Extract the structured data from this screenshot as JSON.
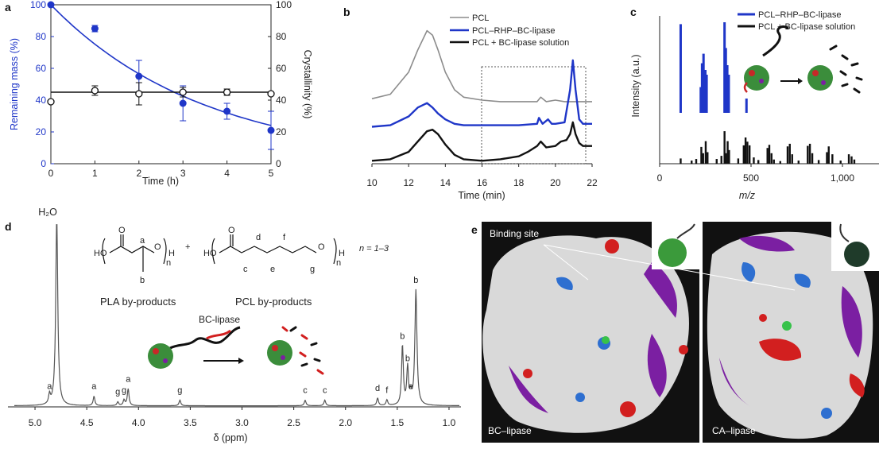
{
  "panel_labels": {
    "a": "a",
    "b": "b",
    "c": "c",
    "d": "d",
    "e": "e"
  },
  "colors": {
    "blue": "#1f36c8",
    "black": "#111111",
    "gray": "#8c8c8c",
    "red": "#d21f1f",
    "green": "#2f8f34",
    "purple": "#7b1fa2"
  },
  "chart_data": [
    {
      "panel": "a",
      "type": "scatter",
      "xlabel": "Time (h)",
      "ylabel": "Remaining mass (%)",
      "y2label": "Crystallinity (%)",
      "xlim": [
        0,
        5
      ],
      "ylim": [
        0,
        100
      ],
      "y2lim": [
        0,
        100
      ],
      "x_ticks": [
        "0",
        "1",
        "2",
        "3",
        "4",
        "5"
      ],
      "y_ticks": [
        "0",
        "20",
        "40",
        "60",
        "80",
        "100"
      ],
      "y2_ticks": [
        "0",
        "20",
        "40",
        "60",
        "80",
        "100"
      ],
      "series": [
        {
          "color": "#1f36c8",
          "x": [
            0,
            1,
            2,
            3,
            4,
            5
          ],
          "y": [
            100,
            85,
            55,
            38,
            33,
            21
          ],
          "err": [
            0,
            2,
            10,
            11,
            5,
            12
          ],
          "fit_y": [
            100,
            76,
            58,
            44,
            33,
            24
          ]
        },
        {
          "color": "#111111",
          "x": [
            0,
            1,
            2,
            3,
            4,
            5
          ],
          "y": [
            39,
            46,
            44,
            45,
            45,
            44
          ],
          "err": [
            0,
            3,
            7,
            3,
            2,
            0
          ],
          "fit_y": [
            45,
            45,
            45,
            45,
            45,
            45
          ]
        }
      ]
    },
    {
      "panel": "b",
      "type": "line",
      "xlabel": "Time (min)",
      "xlim": [
        10,
        22
      ],
      "x_ticks": [
        "10",
        "12",
        "14",
        "16",
        "18",
        "20",
        "22"
      ],
      "legend": [
        "PCL",
        "PCL–RHP–BC-lipase",
        "PCL + BC-lipase solution"
      ],
      "series": [
        {
          "name": "PCL",
          "color": "#8c8c8c",
          "x": [
            10,
            11,
            12,
            12.5,
            13,
            13.3,
            13.6,
            14,
            14.5,
            15,
            16,
            17,
            18,
            19,
            19.2,
            19.5,
            20,
            20.5,
            21,
            21.5,
            22
          ],
          "y": [
            0.44,
            0.47,
            0.62,
            0.77,
            0.9,
            0.87,
            0.77,
            0.62,
            0.5,
            0.45,
            0.43,
            0.42,
            0.42,
            0.42,
            0.45,
            0.42,
            0.43,
            0.42,
            0.42,
            0.42,
            0.42
          ]
        },
        {
          "name": "PCL–RHP–BC-lipase",
          "color": "#1f36c8",
          "x": [
            10,
            11,
            12,
            12.5,
            13,
            13.3,
            13.6,
            14,
            14.5,
            15,
            16,
            17,
            18,
            19,
            19.1,
            19.3,
            19.6,
            19.8,
            20,
            20.5,
            20.8,
            20.95,
            21.1,
            21.3,
            21.5,
            22
          ],
          "y": [
            0.25,
            0.26,
            0.32,
            0.38,
            0.41,
            0.38,
            0.34,
            0.3,
            0.27,
            0.26,
            0.26,
            0.26,
            0.26,
            0.27,
            0.31,
            0.27,
            0.3,
            0.27,
            0.27,
            0.28,
            0.5,
            0.7,
            0.5,
            0.3,
            0.27,
            0.27
          ]
        },
        {
          "name": "PCL + BC-lipase solution",
          "color": "#111111",
          "x": [
            10,
            11,
            12,
            12.5,
            13,
            13.3,
            13.6,
            14,
            14.5,
            15,
            16,
            17,
            18,
            18.5,
            19,
            19.2,
            19.5,
            20,
            20.3,
            20.6,
            20.8,
            20.95,
            21.1,
            21.3,
            21.5,
            22
          ],
          "y": [
            0.02,
            0.03,
            0.08,
            0.15,
            0.22,
            0.23,
            0.2,
            0.13,
            0.06,
            0.03,
            0.02,
            0.03,
            0.05,
            0.08,
            0.12,
            0.15,
            0.11,
            0.12,
            0.15,
            0.16,
            0.2,
            0.28,
            0.2,
            0.14,
            0.12,
            0.12
          ]
        }
      ]
    },
    {
      "panel": "c",
      "type": "bar",
      "xlabel": "m/z",
      "ylabel": "Intensity (a.u.)",
      "xlim": [
        0,
        1200
      ],
      "x_ticks": [
        "0",
        "500",
        "1,000"
      ],
      "legend": [
        "PCL–RHP–BC-lipase",
        "PCL + BC-lipase solution"
      ],
      "series": [
        {
          "name": "PCL–RHP–BC-lipase",
          "color": "#1f36c8",
          "x": [
            115,
            225,
            232,
            240,
            250,
            257,
            355,
            362,
            370,
            378,
            475
          ],
          "y": [
            0.93,
            0.27,
            0.52,
            0.62,
            0.45,
            0.4,
            0.95,
            0.68,
            0.5,
            0.4,
            0.15
          ]
        },
        {
          "name": "PCL + BC-lipase solution",
          "color": "#111111",
          "x": [
            115,
            175,
            200,
            228,
            238,
            252,
            262,
            312,
            338,
            355,
            362,
            372,
            380,
            430,
            460,
            470,
            480,
            492,
            515,
            540,
            590,
            600,
            612,
            625,
            660,
            700,
            712,
            725,
            760,
            810,
            822,
            835,
            870,
            915,
            925,
            945,
            990,
            1035,
            1050,
            1065
          ],
          "y": [
            0.1,
            0.06,
            0.09,
            0.32,
            0.2,
            0.43,
            0.22,
            0.09,
            0.15,
            0.62,
            0.2,
            0.43,
            0.26,
            0.1,
            0.35,
            0.5,
            0.42,
            0.35,
            0.12,
            0.07,
            0.3,
            0.36,
            0.2,
            0.08,
            0.05,
            0.33,
            0.38,
            0.18,
            0.06,
            0.34,
            0.38,
            0.2,
            0.07,
            0.22,
            0.33,
            0.18,
            0.06,
            0.18,
            0.14,
            0.08
          ]
        }
      ]
    },
    {
      "panel": "d",
      "type": "line",
      "xlabel": "δ (ppm)",
      "xlim": [
        5.2,
        0.9
      ],
      "x_ticks": [
        "5.0",
        "4.5",
        "4.0",
        "3.5",
        "3.0",
        "2.5",
        "2.0",
        "1.5",
        "1.0"
      ],
      "peaks": [
        {
          "label": "a",
          "ppm": 4.86,
          "h": 0.05
        },
        {
          "label": "H₂O",
          "ppm": 4.79,
          "h": 1.0
        },
        {
          "label": "a",
          "ppm": 4.43,
          "h": 0.05
        },
        {
          "label": "g",
          "ppm": 4.2,
          "h": 0.02
        },
        {
          "label": "g",
          "ppm": 4.14,
          "h": 0.03
        },
        {
          "label": "a",
          "ppm": 4.1,
          "h": 0.09
        },
        {
          "label": "g",
          "ppm": 3.6,
          "h": 0.03
        },
        {
          "label": "c",
          "ppm": 2.39,
          "h": 0.03
        },
        {
          "label": "c",
          "ppm": 2.2,
          "h": 0.03
        },
        {
          "label": "d",
          "ppm": 1.69,
          "h": 0.04
        },
        {
          "label": "f",
          "ppm": 1.6,
          "h": 0.03
        },
        {
          "label": "b",
          "ppm": 1.45,
          "h": 0.32
        },
        {
          "label": "b",
          "ppm": 1.4,
          "h": 0.2
        },
        {
          "label": "e",
          "ppm": 1.37,
          "h": 0.05
        },
        {
          "label": "b",
          "ppm": 1.32,
          "h": 0.62
        }
      ]
    }
  ],
  "panel_a_texts": {
    "xlabel": "Time (h)",
    "ylabel": "Remaining mass (%)",
    "y2label": "Crystallinity (%)"
  },
  "panel_b_texts": {
    "xlabel": "Time (min)",
    "legend1": "PCL",
    "legend2": "PCL–RHP–BC-lipase",
    "legend3": "PCL + BC-lipase solution"
  },
  "panel_c_texts": {
    "xlabel": "m/z",
    "ylabel": "Intensity (a.u.)",
    "legend1": "PCL–RHP–BC-lipase",
    "legend2": "PCL + BC-lipase solution"
  },
  "panel_d_texts": {
    "xlabel": "δ (ppm)",
    "h2o": "H₂O",
    "pla_caption": "PLA by-products",
    "pcl_caption": "PCL by-products",
    "n_range": "n = 1–3",
    "bc_lipase": "BC-lipase",
    "ho1": "HO",
    "ho2": "HO",
    "h1": "H",
    "h2": "H",
    "n1": "n",
    "n2": "n",
    "o1": "O",
    "o2": "O",
    "o3": "O",
    "o4": "O",
    "struct_a": "a",
    "struct_b": "b",
    "struct_c": "c",
    "struct_d": "d",
    "struct_e": "e",
    "struct_f": "f",
    "struct_g": "g",
    "plus": "+"
  },
  "panel_e_texts": {
    "binding_site": "Binding site",
    "left_label": "BC–lipase",
    "right_label": "CA–lipase"
  }
}
